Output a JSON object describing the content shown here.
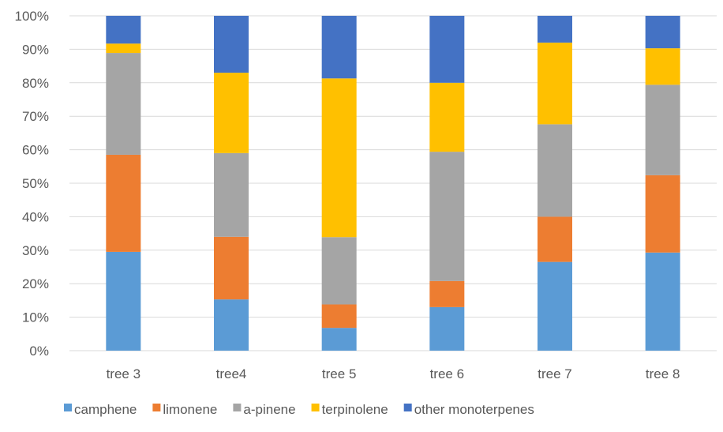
{
  "chart_data": {
    "type": "bar",
    "stacked": "percent",
    "categories": [
      "tree 3",
      "tree4",
      "tree 5",
      "tree 6",
      "tree 7",
      "tree 8"
    ],
    "series": [
      {
        "name": "camphene",
        "color": "#5B9BD5",
        "values": [
          29.5,
          15.3,
          6.8,
          13.0,
          26.5,
          29.3
        ]
      },
      {
        "name": "limonene",
        "color": "#ED7D31",
        "values": [
          29.0,
          18.7,
          7.0,
          7.8,
          13.5,
          23.1
        ]
      },
      {
        "name": "a-pinene",
        "color": "#A5A5A5",
        "values": [
          30.4,
          25.0,
          20.1,
          38.6,
          27.6,
          27.0
        ]
      },
      {
        "name": "terpinolene",
        "color": "#FFC000",
        "values": [
          2.8,
          24.0,
          47.4,
          20.6,
          24.4,
          10.9
        ]
      },
      {
        "name": "other monoterpenes",
        "color": "#4472C4",
        "values": [
          8.3,
          17.0,
          18.7,
          20.0,
          8.0,
          9.7
        ]
      }
    ],
    "y_ticks": [
      "0%",
      "10%",
      "20%",
      "30%",
      "40%",
      "50%",
      "60%",
      "70%",
      "80%",
      "90%",
      "100%"
    ],
    "ylim": [
      0,
      100
    ],
    "grid": true,
    "legend_position": "bottom"
  }
}
